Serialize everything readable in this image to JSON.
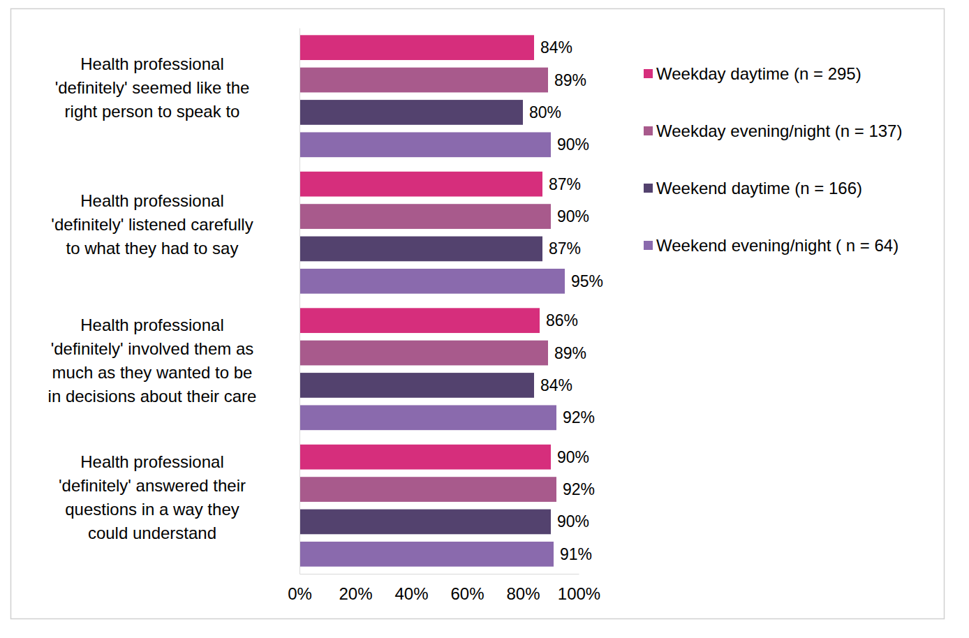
{
  "chart_data": {
    "type": "bar",
    "orientation": "horizontal",
    "data_labels": true,
    "grid": false,
    "legend": "right",
    "categories": [
      "Health professional\n'definitely' seemed like the\nright person to speak to",
      "Health professional\n'definitely' listened carefully\nto what they had to say",
      "Health professional\n'definitely' involved them as\nmuch as they wanted to be\nin decisions about their care",
      "Health professional\n'definitely' answered their\nquestions in a way they\ncould understand"
    ],
    "series": [
      {
        "name": "Weekday daytime (n = 295)",
        "color": "#d62e7c",
        "values": [
          84,
          87,
          86,
          90
        ],
        "value_labels": [
          "84%",
          "87%",
          "86%",
          "90%"
        ]
      },
      {
        "name": "Weekday evening/night (n = 137)",
        "color": "#a85a8c",
        "values": [
          89,
          90,
          89,
          92
        ],
        "value_labels": [
          "89%",
          "90%",
          "89%",
          "92%"
        ]
      },
      {
        "name": "Weekend daytime (n = 166)",
        "color": "#53426e",
        "values": [
          80,
          87,
          84,
          90
        ],
        "value_labels": [
          "80%",
          "87%",
          "84%",
          "90%"
        ]
      },
      {
        "name": "Weekend evening/night ( n = 64)",
        "color": "#8a6aad",
        "values": [
          90,
          95,
          92,
          91
        ],
        "value_labels": [
          "90%",
          "95%",
          "92%",
          "91%"
        ]
      }
    ],
    "xlim": [
      0,
      100
    ],
    "xticks": [
      {
        "value": 0,
        "label": "0%"
      },
      {
        "value": 20,
        "label": "20%"
      },
      {
        "value": 40,
        "label": "40%"
      },
      {
        "value": 60,
        "label": "60%"
      },
      {
        "value": 80,
        "label": "80%"
      },
      {
        "value": 100,
        "label": "100%"
      }
    ]
  }
}
